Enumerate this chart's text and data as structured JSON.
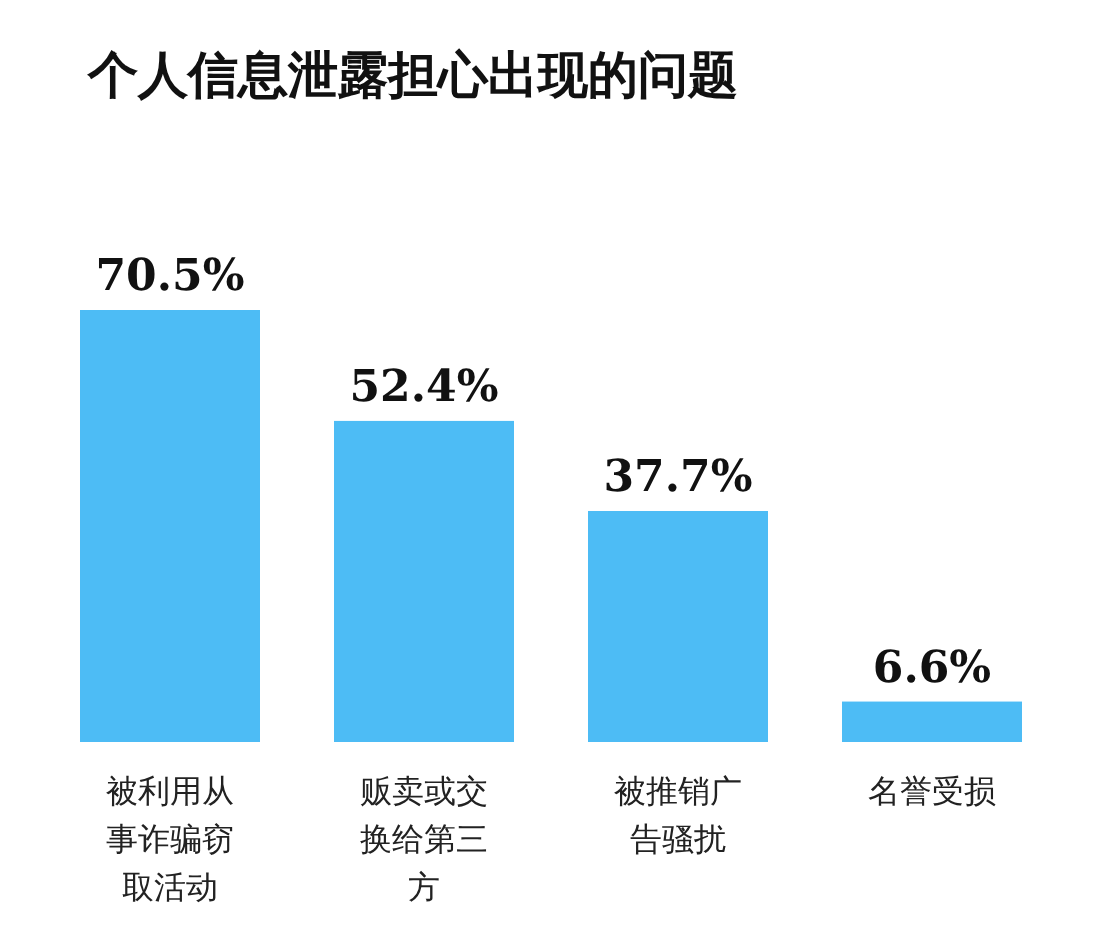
{
  "chart_data": {
    "type": "bar",
    "title": "个人信息泄露担心出现的问题",
    "categories": [
      "被利用从事诈骗窃取活动",
      "贩卖或交换给第三方",
      "被推销广告骚扰",
      "名誉受损"
    ],
    "values": [
      70.5,
      52.4,
      37.7,
      6.6
    ],
    "value_labels": [
      "70.5%",
      "52.4%",
      "37.7%",
      "6.6%"
    ],
    "color": "#4dbcf5"
  }
}
